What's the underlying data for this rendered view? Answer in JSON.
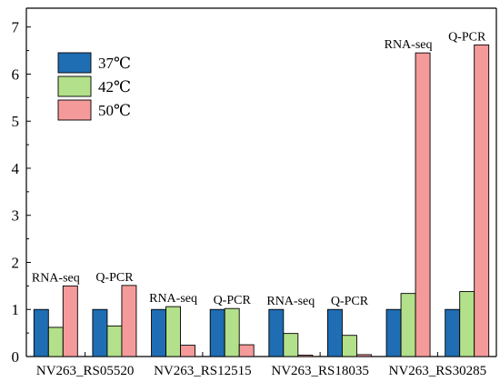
{
  "chart_data": {
    "type": "bar",
    "title": "",
    "xlabel": "",
    "ylabel": "",
    "ylim": [
      0,
      7.4
    ],
    "yticks": [
      0,
      1,
      2,
      3,
      4,
      5,
      6,
      7
    ],
    "groups": [
      {
        "gene": "NV263_RS05520",
        "pairs": [
          "RNA-seq",
          "Q-PCR"
        ]
      },
      {
        "gene": "NV263_RS12515",
        "pairs": [
          "RNA-seq",
          "Q-PCR"
        ]
      },
      {
        "gene": "NV263_RS18035",
        "pairs": [
          "RNA-seq",
          "Q-PCR"
        ]
      },
      {
        "gene": "NV263_RS30285",
        "pairs": [
          "RNA-seq",
          "Q-PCR"
        ]
      }
    ],
    "categories": [
      "RNA-seq",
      "Q-PCR",
      "RNA-seq",
      "Q-PCR",
      "RNA-seq",
      "Q-PCR",
      "RNA-seq",
      "Q-PCR"
    ],
    "series": [
      {
        "name": "37℃",
        "color": "#1f6db3",
        "values": [
          1,
          1,
          1,
          1,
          1,
          1,
          1,
          1
        ]
      },
      {
        "name": "42℃",
        "color": "#b3e08a",
        "values": [
          0.62,
          0.65,
          1.06,
          1.02,
          0.49,
          0.45,
          1.34,
          1.38
        ]
      },
      {
        "name": "50℃",
        "color": "#f59a9a",
        "values": [
          1.5,
          1.51,
          0.24,
          0.25,
          0.03,
          0.04,
          6.45,
          6.62
        ]
      }
    ],
    "legend_position": "top-left",
    "grid": false
  }
}
